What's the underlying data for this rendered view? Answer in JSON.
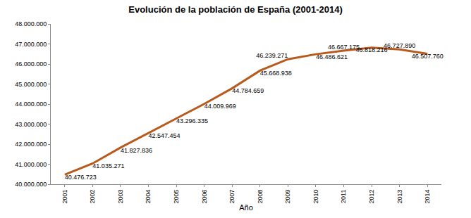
{
  "chart_data": {
    "type": "line",
    "title": "Evolución de la población de España (2001-2014)",
    "x_label": "Año",
    "categories": [
      "2001",
      "2002",
      "2003",
      "2004",
      "2005",
      "2006",
      "2007",
      "2008",
      "2009",
      "2010",
      "2011",
      "2012",
      "2013",
      "2014"
    ],
    "values": [
      40476723,
      41035271,
      41827836,
      42547454,
      43296335,
      44009969,
      44784659,
      45668938,
      46239271,
      46486621,
      46667175,
      46818216,
      46727890,
      46507760
    ],
    "value_labels": [
      "40.476.723",
      "41.035.271",
      "41.827.836",
      "42.547.454",
      "43.296.335",
      "44.009.969",
      "44.784.659",
      "45.668.938",
      "46.239.271",
      "46.486.621",
      "46.667.175",
      "46.818.216",
      "46.727.890",
      "46.507.760"
    ],
    "color": "#b85a1b",
    "line_style": "solid",
    "data_labels": true,
    "grid": false,
    "ylim": [
      40000000,
      48000000
    ],
    "yticks": [
      {
        "value": 40000000,
        "label": "40.000.000"
      },
      {
        "value": 41000000,
        "label": "41.000.000"
      },
      {
        "value": 42000000,
        "label": "42.000.000"
      },
      {
        "value": 43000000,
        "label": "43.000.000"
      },
      {
        "value": 44000000,
        "label": "44.000.000"
      },
      {
        "value": 45000000,
        "label": "45.000.000"
      },
      {
        "value": 46000000,
        "label": "46.000.000"
      },
      {
        "value": 47000000,
        "label": "47.000.000"
      },
      {
        "value": 48000000,
        "label": "48.000.000"
      }
    ]
  }
}
